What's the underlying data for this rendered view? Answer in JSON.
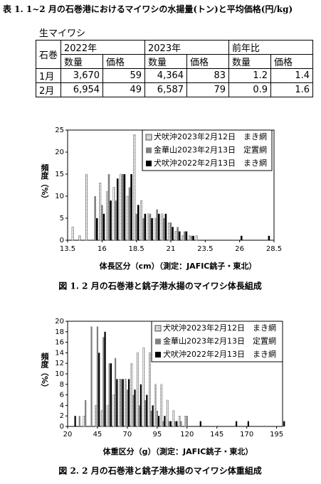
{
  "table_title": "表 1. 1~2 月の石巻港におけるマイワシの水揚量(トン)と平均価格(円/kg)",
  "table": {
    "caption": "生マイワシ",
    "header_top": [
      "石巻",
      "2022年",
      "2023年",
      "前年比"
    ],
    "header_sub": [
      "数量",
      "価格",
      "数量",
      "価格",
      "数量",
      "価格"
    ],
    "rows": [
      [
        "1月",
        "3,670",
        "59",
        "4,364",
        "83",
        "1.2",
        "1.4"
      ],
      [
        "2月",
        "6,954",
        "49",
        "6,587",
        "79",
        "0.9",
        "1.6"
      ]
    ]
  },
  "chart_data": [
    {
      "type": "bar",
      "caption": "図 1.  2 月の石巻港と銚子港水揚のマイワシ体長組成",
      "x_label": "体長区分（cm）（測定：JAFIC銚子・東北）",
      "y_label": "頻度（%）",
      "x": [
        14,
        14.5,
        15,
        15.5,
        16,
        16.5,
        17,
        17.5,
        18,
        18.5,
        19,
        19.5,
        20,
        20.5,
        21,
        21.5,
        22,
        22.5,
        23,
        23.5,
        24,
        24.5,
        25,
        25.5,
        26,
        26.5,
        27,
        27.5,
        28
      ],
      "series": [
        {
          "name": "犬吠沖2023年2月12日　まき網",
          "color": "#555555",
          "pattern": "dots",
          "values": [
            3,
            1,
            15,
            0,
            13,
            11,
            12,
            15,
            10,
            24,
            9,
            6,
            5,
            6,
            4,
            2,
            1,
            1,
            1,
            0,
            0,
            0,
            0,
            0,
            0,
            0,
            0,
            0,
            0
          ]
        },
        {
          "name": "金華山2023年2月13日　定置網",
          "color": "#808080",
          "pattern": "solid",
          "values": [
            0,
            0,
            0,
            10,
            8,
            15,
            9,
            15,
            12,
            6,
            5,
            6,
            7,
            5,
            4,
            3,
            2,
            1,
            0,
            0,
            0,
            0,
            0,
            0,
            0,
            0,
            0,
            0,
            0
          ]
        },
        {
          "name": "犬吠沖2022年2月13日　まき網",
          "color": "#000000",
          "pattern": "solid",
          "values": [
            0,
            0,
            0,
            5,
            6,
            9,
            14,
            15,
            15,
            8,
            6,
            5,
            6,
            6,
            3,
            2,
            2,
            1,
            0,
            0,
            0,
            0,
            0,
            0,
            1,
            0,
            0,
            0,
            1
          ]
        }
      ],
      "xlim": [
        13.5,
        28.5
      ],
      "xticks": [
        13.5,
        16,
        18.5,
        21,
        23.5,
        26,
        28.5
      ],
      "ylim": [
        0,
        25
      ],
      "yticks": [
        0,
        5,
        10,
        15,
        20,
        25
      ],
      "legend": "upper right",
      "grid": false
    },
    {
      "type": "bar",
      "caption": "図 2.  2 月の石巻港と銚子港水揚のマイワシ体重組成",
      "x_label": "体重区分（g）（測定：JAFIC銚子・東北）",
      "y_label": "頻度（%）",
      "x": [
        25,
        30,
        35,
        40,
        45,
        50,
        55,
        60,
        65,
        70,
        75,
        80,
        85,
        90,
        95,
        100,
        105,
        110,
        115,
        120,
        125,
        130,
        135,
        140,
        145,
        150,
        155,
        160,
        165,
        170,
        175,
        180,
        185,
        190,
        195,
        200
      ],
      "series": [
        {
          "name": "犬吠沖2023年2月12日　まき網",
          "color": "#555555",
          "pattern": "dots",
          "values": [
            0,
            0,
            2,
            0,
            4,
            3,
            4,
            6,
            9,
            9,
            12,
            14,
            15,
            14,
            8,
            8,
            5,
            3,
            2,
            2,
            0,
            0,
            0,
            0,
            0,
            0,
            0,
            0,
            0,
            0,
            0,
            0,
            0,
            0,
            0,
            0
          ]
        },
        {
          "name": "金華山2023年2月13日　定置網",
          "color": "#808080",
          "pattern": "solid",
          "values": [
            0,
            2,
            5,
            19,
            19,
            17,
            12,
            13,
            9,
            7,
            6,
            4,
            5,
            3,
            3,
            1,
            1,
            1,
            1,
            2,
            0,
            0,
            0,
            0,
            0,
            0,
            0,
            0,
            0,
            0,
            0,
            0,
            0,
            0,
            0,
            0
          ]
        },
        {
          "name": "犬吠沖2022年2月13日　まき網",
          "color": "#000000",
          "pattern": "solid",
          "values": [
            2,
            0,
            0,
            0,
            14,
            18,
            12,
            9,
            9,
            9,
            7,
            8,
            6,
            4,
            2,
            2,
            1,
            1,
            0,
            0,
            0,
            1,
            0,
            0,
            0,
            0,
            0,
            1,
            0,
            1,
            0,
            0,
            0,
            0,
            0,
            1
          ]
        }
      ],
      "xlim": [
        20,
        200
      ],
      "xticks": [
        20,
        45,
        70,
        95,
        120,
        145,
        170,
        195
      ],
      "ylim": [
        0,
        20
      ],
      "yticks": [
        0,
        2,
        4,
        6,
        8,
        10,
        12,
        14,
        16,
        18,
        20
      ],
      "legend": "upper right",
      "grid": false
    }
  ]
}
